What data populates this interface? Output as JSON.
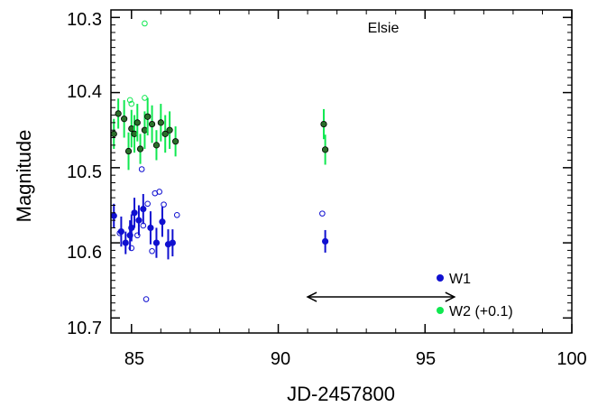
{
  "chart_data": {
    "type": "scatter",
    "xlabel": "JD-2457800",
    "ylabel": "Magnitude",
    "xlim": [
      84.3,
      100
    ],
    "ylim": [
      10.71,
      10.28
    ],
    "y_inverted": true,
    "grid": false,
    "x_ticks": [
      85,
      90,
      95,
      100
    ],
    "x_tick_labels": [
      "85",
      "90",
      "95",
      "100"
    ],
    "y_ticks": [
      10.3,
      10.4,
      10.5,
      10.6,
      10.7
    ],
    "y_tick_labels": [
      "10.3",
      "10.4",
      "10.5",
      "10.6",
      "10.7"
    ],
    "legend_position": "bottom-right",
    "legend": [
      {
        "label": "W1",
        "color": "#1010d0"
      },
      {
        "label": "W2 (+0.1)",
        "color": "#10e850"
      }
    ],
    "annotation": {
      "text": "Elsie",
      "arrow_from_x": 91.0,
      "arrow_to_x": 96.0,
      "y": 10.328
    },
    "series": [
      {
        "name": "W1",
        "color": "#1010d0",
        "marker": "filled-circle-errorbar",
        "points": [
          {
            "x": 84.4,
            "y": 10.436,
            "err": 0.016
          },
          {
            "x": 84.65,
            "y": 10.415,
            "err": 0.02
          },
          {
            "x": 84.8,
            "y": 10.4,
            "err": 0.015
          },
          {
            "x": 84.95,
            "y": 10.41,
            "err": 0.02
          },
          {
            "x": 85.0,
            "y": 10.42,
            "err": 0.018
          },
          {
            "x": 85.1,
            "y": 10.44,
            "err": 0.02
          },
          {
            "x": 85.25,
            "y": 10.43,
            "err": 0.02
          },
          {
            "x": 85.4,
            "y": 10.445,
            "err": 0.02
          },
          {
            "x": 85.65,
            "y": 10.42,
            "err": 0.022
          },
          {
            "x": 85.85,
            "y": 10.4,
            "err": 0.02
          },
          {
            "x": 86.05,
            "y": 10.428,
            "err": 0.02
          },
          {
            "x": 86.25,
            "y": 10.398,
            "err": 0.02
          },
          {
            "x": 86.4,
            "y": 10.4,
            "err": 0.018
          },
          {
            "x": 91.6,
            "y": 10.402,
            "err": 0.015
          }
        ]
      },
      {
        "name": "W1 (open)",
        "color": "#1010d0",
        "marker": "open-circle",
        "points": [
          {
            "x": 85.5,
            "y": 10.325
          },
          {
            "x": 84.6,
            "y": 10.413
          },
          {
            "x": 85.0,
            "y": 10.393
          },
          {
            "x": 85.2,
            "y": 10.41
          },
          {
            "x": 85.4,
            "y": 10.423
          },
          {
            "x": 85.55,
            "y": 10.452
          },
          {
            "x": 85.7,
            "y": 10.389
          },
          {
            "x": 85.8,
            "y": 10.466
          },
          {
            "x": 85.95,
            "y": 10.468
          },
          {
            "x": 86.1,
            "y": 10.451
          },
          {
            "x": 86.55,
            "y": 10.437
          },
          {
            "x": 85.35,
            "y": 10.498
          },
          {
            "x": 91.5,
            "y": 10.439
          }
        ]
      },
      {
        "name": "W2 (+0.1)",
        "color": "#10e850",
        "marker": "filled-circle-errorbar",
        "points": [
          {
            "x": 84.4,
            "y": 10.545,
            "err": 0.02
          },
          {
            "x": 84.55,
            "y": 10.572,
            "err": 0.02
          },
          {
            "x": 84.75,
            "y": 10.565,
            "err": 0.025
          },
          {
            "x": 84.9,
            "y": 10.522,
            "err": 0.025
          },
          {
            "x": 85.0,
            "y": 10.552,
            "err": 0.025
          },
          {
            "x": 85.1,
            "y": 10.545,
            "err": 0.025
          },
          {
            "x": 85.2,
            "y": 10.56,
            "err": 0.025
          },
          {
            "x": 85.3,
            "y": 10.525,
            "err": 0.02
          },
          {
            "x": 85.45,
            "y": 10.55,
            "err": 0.025
          },
          {
            "x": 85.55,
            "y": 10.568,
            "err": 0.025
          },
          {
            "x": 85.7,
            "y": 10.558,
            "err": 0.025
          },
          {
            "x": 85.85,
            "y": 10.53,
            "err": 0.02
          },
          {
            "x": 86.0,
            "y": 10.56,
            "err": 0.025
          },
          {
            "x": 86.15,
            "y": 10.545,
            "err": 0.025
          },
          {
            "x": 86.3,
            "y": 10.55,
            "err": 0.025
          },
          {
            "x": 86.5,
            "y": 10.535,
            "err": 0.02
          },
          {
            "x": 91.6,
            "y": 10.524,
            "err": 0.02
          },
          {
            "x": 91.55,
            "y": 10.558,
            "err": 0.02
          }
        ]
      },
      {
        "name": "W2 (open)",
        "color": "#10e850",
        "marker": "open-circle",
        "points": [
          {
            "x": 84.95,
            "y": 10.59
          },
          {
            "x": 85.45,
            "y": 10.593
          },
          {
            "x": 85.45,
            "y": 10.692
          },
          {
            "x": 85.0,
            "y": 10.585
          }
        ]
      }
    ]
  }
}
